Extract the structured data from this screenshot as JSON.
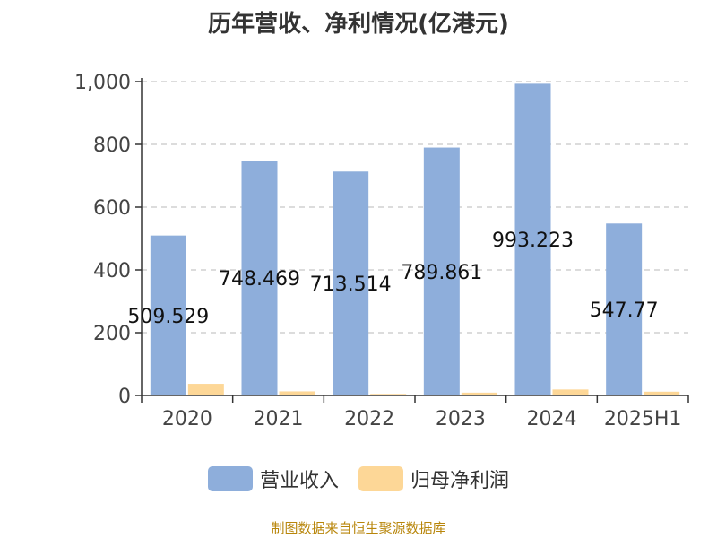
{
  "chart_data": {
    "type": "bar",
    "title": "历年营收、净利情况(亿港元)",
    "categories": [
      "2020",
      "2021",
      "2022",
      "2023",
      "2024",
      "2025H1"
    ],
    "series": [
      {
        "name": "营业收入",
        "color": "#8eaedb",
        "values": [
          509.529,
          748.469,
          713.514,
          789.861,
          993.223,
          547.77
        ],
        "labels": [
          "509.529",
          "748.469",
          "713.514",
          "789.861",
          "993.223",
          "547.77"
        ]
      },
      {
        "name": "归母净利润",
        "color": "#fdd797",
        "values": [
          37,
          13,
          5,
          9,
          19,
          12
        ]
      }
    ],
    "ylim": [
      0,
      1000
    ],
    "yticks": [
      0,
      200,
      400,
      600,
      800,
      1000
    ],
    "ytick_labels": [
      "0",
      "200",
      "400",
      "600",
      "800",
      "1,000"
    ],
    "grid": true,
    "legend": "bottom"
  },
  "source": "制图数据来自恒生聚源数据库"
}
